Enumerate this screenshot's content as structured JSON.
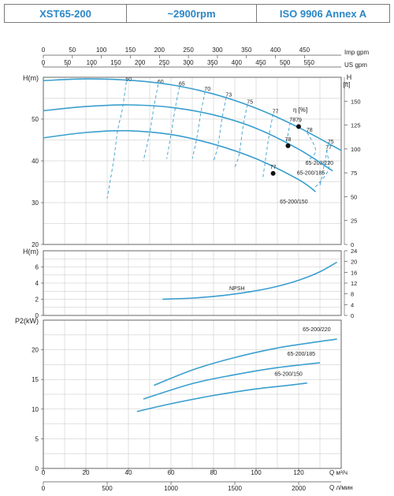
{
  "header": {
    "model": "XST65-200",
    "speed": "~2900rpm",
    "standard": "ISO 9906   Annex A"
  },
  "chart_data": [
    {
      "type": "line",
      "name": "head",
      "ylabel_left": "H(m)",
      "ylabel_right_top": "H",
      "ylabel_right_unit": "[ft]",
      "x_range_m3h": [
        0,
        140
      ],
      "ylim_m": [
        20,
        60
      ],
      "ylim_ft": [
        0,
        175
      ],
      "y_ticks_m": [
        20,
        30,
        40,
        50
      ],
      "y_ticks_ft": [
        0,
        25,
        50,
        75,
        100,
        125,
        150
      ],
      "x_ticks_impgpm": [
        0,
        50,
        100,
        150,
        200,
        250,
        300,
        350,
        400,
        450
      ],
      "x_ticks_usgpm": [
        0,
        50,
        100,
        150,
        200,
        250,
        300,
        350,
        400,
        450,
        500,
        550
      ],
      "x_top_label_imp": "Imp gpm",
      "x_top_label_us": "US gpm",
      "efficiency_label": "η [%]",
      "series": [
        {
          "name": "65-200/220",
          "points": [
            [
              0,
              59.2
            ],
            [
              20,
              59.6
            ],
            [
              40,
              59.3
            ],
            [
              60,
              58.2
            ],
            [
              80,
              56.0
            ],
            [
              100,
              52.6
            ],
            [
              120,
              48.0
            ],
            [
              140,
              42.5
            ]
          ]
        },
        {
          "name": "65-200/185",
          "points": [
            [
              0,
              52.0
            ],
            [
              20,
              53.0
            ],
            [
              40,
              53.4
            ],
            [
              60,
              52.8
            ],
            [
              80,
              51.0
            ],
            [
              100,
              47.8
            ],
            [
              120,
              42.8
            ],
            [
              136,
              37.6
            ]
          ]
        },
        {
          "name": "65-200/150",
          "points": [
            [
              0,
              45.5
            ],
            [
              20,
              46.8
            ],
            [
              40,
              47.2
            ],
            [
              60,
              46.3
            ],
            [
              80,
              44.0
            ],
            [
              100,
              40.5
            ],
            [
              120,
              35.5
            ],
            [
              128,
              32.6
            ]
          ]
        }
      ],
      "efficiency_lines": [
        {
          "label": "50",
          "points": [
            [
              39,
              58.9
            ],
            [
              37,
              52
            ],
            [
              35,
              47.5
            ],
            [
              33,
              40
            ],
            [
              30,
              31
            ]
          ]
        },
        {
          "label": "60",
          "points": [
            [
              54,
              58.3
            ],
            [
              52,
              53.0
            ],
            [
              50,
              46.8
            ],
            [
              47,
              40
            ]
          ]
        },
        {
          "label": "65",
          "points": [
            [
              64,
              57.8
            ],
            [
              62,
              52.6
            ],
            [
              60,
              46.3
            ],
            [
              58,
              40.5
            ]
          ]
        },
        {
          "label": "70",
          "points": [
            [
              76,
              56.6
            ],
            [
              74,
              51.4
            ],
            [
              72,
              45.1
            ],
            [
              70,
              40.5
            ]
          ]
        },
        {
          "label": "73",
          "points": [
            [
              86,
              55.2
            ],
            [
              84,
              50.2
            ],
            [
              82,
              43.5
            ],
            [
              80,
              40
            ]
          ]
        },
        {
          "label": "75",
          "points": [
            [
              96,
              53.5
            ],
            [
              94,
              48.7
            ],
            [
              92,
              41.5
            ],
            [
              90,
              38.5
            ]
          ]
        },
        {
          "label": "77",
          "points": [
            [
              108,
              51.2
            ],
            [
              106,
              45.8
            ],
            [
              104,
              38.8
            ],
            [
              103,
              35.5
            ]
          ]
        },
        {
          "label": "78",
          "points": [
            [
              116,
              49.2
            ],
            [
              114,
              43.5
            ]
          ]
        },
        {
          "label": "78",
          "points": [
            [
              124,
              46.8
            ],
            [
              128,
              42.5
            ],
            [
              124,
              39.8
            ]
          ]
        },
        {
          "label": "77",
          "points": [
            [
              133,
              42.6
            ],
            [
              134,
              37.9
            ],
            [
              127,
              33.2
            ]
          ]
        },
        {
          "label": "75",
          "points": [
            [
              134,
              44.0
            ],
            [
              130,
              34.0
            ]
          ]
        }
      ],
      "bep_points": [
        {
          "label": "79",
          "x": 120,
          "y": 48.2
        },
        {
          "label": "78",
          "x": 115,
          "y": 43.6
        },
        {
          "label": "77",
          "x": 108,
          "y": 37.0
        }
      ]
    },
    {
      "type": "line",
      "name": "npsh",
      "ylabel_left": "H(m)",
      "ylim_m": [
        0,
        8
      ],
      "ylim_ft": [
        0,
        24
      ],
      "y_ticks_m": [
        0,
        2,
        4,
        6
      ],
      "y_ticks_ft": [
        0,
        4,
        8,
        12,
        16,
        20,
        24
      ],
      "series": [
        {
          "name": "NPSH",
          "points": [
            [
              56,
              2.0
            ],
            [
              70,
              2.15
            ],
            [
              80,
              2.35
            ],
            [
              90,
              2.65
            ],
            [
              100,
              3.05
            ],
            [
              110,
              3.6
            ],
            [
              120,
              4.35
            ],
            [
              130,
              5.4
            ],
            [
              138,
              6.6
            ]
          ]
        }
      ]
    },
    {
      "type": "line",
      "name": "power",
      "ylabel_left": "P2(kW)",
      "ylim": [
        0,
        25
      ],
      "y_ticks": [
        0,
        5,
        10,
        15,
        20
      ],
      "x_ticks_m3h": [
        0,
        20,
        40,
        60,
        80,
        100,
        120
      ],
      "x_ticks_lmin": [
        0,
        500,
        1000,
        1500,
        2000
      ],
      "x_label_m3h": "Q  м³/ч",
      "x_label_lmin": "Q  л/мин",
      "series": [
        {
          "name": "65-200/220",
          "points": [
            [
              52,
              14.0
            ],
            [
              70,
              16.6
            ],
            [
              90,
              18.7
            ],
            [
              110,
              20.3
            ],
            [
              128,
              21.3
            ],
            [
              138,
              21.8
            ]
          ]
        },
        {
          "name": "65-200/185",
          "points": [
            [
              47,
              11.7
            ],
            [
              70,
              14.3
            ],
            [
              90,
              15.8
            ],
            [
              110,
              17.0
            ],
            [
              130,
              17.8
            ]
          ]
        },
        {
          "name": "65-200/150",
          "points": [
            [
              44,
              9.6
            ],
            [
              60,
              10.9
            ],
            [
              80,
              12.3
            ],
            [
              100,
              13.4
            ],
            [
              115,
              14.0
            ],
            [
              124,
              14.4
            ]
          ]
        }
      ]
    }
  ]
}
